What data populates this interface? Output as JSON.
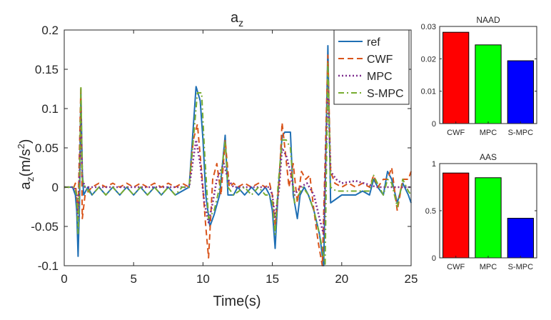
{
  "chart_data": [
    {
      "type": "line",
      "title_main": "a",
      "title_sub": "z",
      "xlabel": "Time(s)",
      "ylabel_main": "a",
      "ylabel_sub": "z",
      "ylabel_unit": "(m/s",
      "ylabel_exp": "2",
      "ylabel_close": ")",
      "xlim": [
        0,
        25
      ],
      "ylim": [
        -0.1,
        0.2
      ],
      "xticks": [
        0,
        5,
        10,
        15,
        20,
        25
      ],
      "xtick_labels": [
        "0",
        "5",
        "10",
        "15",
        "20",
        "25"
      ],
      "yticks": [
        -0.1,
        -0.05,
        0,
        0.05,
        0.1,
        0.15,
        0.2
      ],
      "ytick_labels": [
        "-0.1",
        "-0.05",
        "0",
        "0.05",
        "0.1",
        "0.15",
        "0.2"
      ],
      "legend_position": "top-right",
      "series": [
        {
          "name": "ref",
          "color": "#1f6fb4",
          "dash": "solid",
          "points": [
            [
              0,
              0
            ],
            [
              0.6,
              0
            ],
            [
              0.8,
              -0.01
            ],
            [
              0.9,
              -0.03
            ],
            [
              1.0,
              -0.088
            ],
            [
              1.1,
              -0.02
            ],
            [
              1.2,
              0.125
            ],
            [
              1.3,
              0.02
            ],
            [
              1.4,
              -0.01
            ],
            [
              1.7,
              0
            ],
            [
              2.0,
              -0.01
            ],
            [
              2.5,
              0
            ],
            [
              3.0,
              -0.01
            ],
            [
              3.5,
              0
            ],
            [
              4.0,
              -0.01
            ],
            [
              4.5,
              0
            ],
            [
              5.0,
              -0.01
            ],
            [
              5.5,
              0
            ],
            [
              6.0,
              -0.01
            ],
            [
              6.5,
              0
            ],
            [
              7.0,
              -0.01
            ],
            [
              7.5,
              0
            ],
            [
              8.0,
              -0.01
            ],
            [
              8.5,
              -0.005
            ],
            [
              9.0,
              0
            ],
            [
              9.5,
              0.128
            ],
            [
              9.8,
              0.11
            ],
            [
              10.0,
              0.06
            ],
            [
              10.2,
              -0.01
            ],
            [
              10.5,
              -0.05
            ],
            [
              10.8,
              -0.035
            ],
            [
              11.2,
              -0.01
            ],
            [
              11.6,
              0.066
            ],
            [
              11.8,
              -0.01
            ],
            [
              12.2,
              -0.01
            ],
            [
              12.5,
              0
            ],
            [
              13.0,
              -0.01
            ],
            [
              13.5,
              0
            ],
            [
              14.0,
              -0.01
            ],
            [
              14.5,
              0
            ],
            [
              14.8,
              -0.01
            ],
            [
              15.0,
              -0.03
            ],
            [
              15.2,
              -0.078
            ],
            [
              15.4,
              -0.01
            ],
            [
              15.7,
              0.065
            ],
            [
              15.9,
              0.07
            ],
            [
              16.3,
              0.07
            ],
            [
              16.5,
              -0.01
            ],
            [
              16.8,
              -0.04
            ],
            [
              17.0,
              -0.01
            ],
            [
              17.3,
              0
            ],
            [
              17.6,
              -0.01
            ],
            [
              18.0,
              -0.03
            ],
            [
              18.4,
              -0.06
            ],
            [
              18.7,
              -0.1
            ],
            [
              19.0,
              0.18
            ],
            [
              19.2,
              -0.02
            ],
            [
              19.6,
              -0.015
            ],
            [
              20.0,
              -0.01
            ],
            [
              20.5,
              -0.01
            ],
            [
              21.0,
              -0.01
            ],
            [
              21.5,
              -0.005
            ],
            [
              22.0,
              -0.01
            ],
            [
              22.3,
              0.01
            ],
            [
              22.6,
              0
            ],
            [
              23.0,
              -0.01
            ],
            [
              23.3,
              0.02
            ],
            [
              23.6,
              0.01
            ],
            [
              24.0,
              -0.02
            ],
            [
              24.4,
              0.005
            ],
            [
              24.8,
              -0.01
            ],
            [
              25.0,
              -0.02
            ]
          ]
        },
        {
          "name": "CWF",
          "color": "#d9541a",
          "dash": "dashed",
          "points": [
            [
              0,
              0
            ],
            [
              0.7,
              0
            ],
            [
              0.8,
              0.005
            ],
            [
              1.0,
              -0.03
            ],
            [
              1.1,
              0.05
            ],
            [
              1.2,
              0.128
            ],
            [
              1.3,
              -0.04
            ],
            [
              1.5,
              -0.01
            ],
            [
              2.0,
              0
            ],
            [
              2.5,
              0.005
            ],
            [
              3.0,
              0
            ],
            [
              3.5,
              0.005
            ],
            [
              4.0,
              0
            ],
            [
              4.5,
              0.005
            ],
            [
              5.0,
              0
            ],
            [
              5.5,
              0.005
            ],
            [
              6.0,
              0
            ],
            [
              6.5,
              0.005
            ],
            [
              7.0,
              0
            ],
            [
              7.5,
              0.005
            ],
            [
              8.0,
              0
            ],
            [
              8.5,
              0.005
            ],
            [
              9.0,
              0
            ],
            [
              9.3,
              0.06
            ],
            [
              9.6,
              0.08
            ],
            [
              9.9,
              0.02
            ],
            [
              10.2,
              -0.05
            ],
            [
              10.4,
              -0.09
            ],
            [
              10.7,
              0.01
            ],
            [
              11.0,
              0.03
            ],
            [
              11.3,
              -0.01
            ],
            [
              11.6,
              0.06
            ],
            [
              11.9,
              0
            ],
            [
              12.2,
              0.005
            ],
            [
              12.5,
              0
            ],
            [
              13.0,
              0.005
            ],
            [
              13.5,
              0
            ],
            [
              14.0,
              0.005
            ],
            [
              14.5,
              0
            ],
            [
              14.8,
              0.005
            ],
            [
              15.0,
              -0.01
            ],
            [
              15.2,
              -0.05
            ],
            [
              15.5,
              0.01
            ],
            [
              15.7,
              0.082
            ],
            [
              15.9,
              0.05
            ],
            [
              16.2,
              0
            ],
            [
              16.5,
              0.03
            ],
            [
              16.8,
              -0.02
            ],
            [
              17.1,
              0.02
            ],
            [
              17.4,
              0.01
            ],
            [
              17.7,
              0.015
            ],
            [
              18.0,
              -0.03
            ],
            [
              18.3,
              -0.07
            ],
            [
              18.6,
              -0.1
            ],
            [
              19.0,
              0.168
            ],
            [
              19.2,
              0.02
            ],
            [
              19.5,
              0.005
            ],
            [
              20.0,
              0
            ],
            [
              20.5,
              0.005
            ],
            [
              21.0,
              0
            ],
            [
              21.5,
              0.005
            ],
            [
              22.0,
              0
            ],
            [
              22.3,
              0.015
            ],
            [
              22.6,
              0
            ],
            [
              23.0,
              0.01
            ],
            [
              23.3,
              0.01
            ],
            [
              23.6,
              0.025
            ],
            [
              24.0,
              -0.03
            ],
            [
              24.4,
              0.01
            ],
            [
              24.8,
              0.01
            ],
            [
              25.0,
              0.02
            ]
          ]
        },
        {
          "name": "MPC",
          "color": "#7e2f8e",
          "dash": "dotted",
          "points": [
            [
              0,
              0
            ],
            [
              0.7,
              0
            ],
            [
              0.9,
              -0.01
            ],
            [
              1.0,
              -0.04
            ],
            [
              1.1,
              0.02
            ],
            [
              1.2,
              0.09
            ],
            [
              1.3,
              0.01
            ],
            [
              1.5,
              0
            ],
            [
              3.0,
              0
            ],
            [
              5.0,
              0
            ],
            [
              7.0,
              0
            ],
            [
              8.5,
              0
            ],
            [
              9.0,
              0
            ],
            [
              9.5,
              0.06
            ],
            [
              9.8,
              0.03
            ],
            [
              10.1,
              -0.02
            ],
            [
              10.4,
              -0.045
            ],
            [
              10.7,
              -0.02
            ],
            [
              11.0,
              0.01
            ],
            [
              11.5,
              0.03
            ],
            [
              11.8,
              0.01
            ],
            [
              12.2,
              0
            ],
            [
              13.0,
              0
            ],
            [
              14.0,
              0
            ],
            [
              14.8,
              0
            ],
            [
              15.0,
              -0.01
            ],
            [
              15.2,
              -0.04
            ],
            [
              15.5,
              0
            ],
            [
              15.7,
              0.05
            ],
            [
              16.0,
              0.04
            ],
            [
              16.3,
              0.02
            ],
            [
              16.6,
              -0.01
            ],
            [
              17.0,
              0
            ],
            [
              17.5,
              0.005
            ],
            [
              18.0,
              -0.01
            ],
            [
              18.4,
              -0.04
            ],
            [
              18.7,
              -0.06
            ],
            [
              19.0,
              0.13
            ],
            [
              19.2,
              0.02
            ],
            [
              19.6,
              0.01
            ],
            [
              20.0,
              0.005
            ],
            [
              21.0,
              0.008
            ],
            [
              22.0,
              0.003
            ],
            [
              22.5,
              0
            ],
            [
              23.0,
              0
            ],
            [
              24.0,
              0
            ],
            [
              25.0,
              0
            ]
          ]
        },
        {
          "name": "S-MPC",
          "color": "#77ac30",
          "dash": "dashdot",
          "points": [
            [
              0,
              0
            ],
            [
              0.7,
              0
            ],
            [
              0.9,
              -0.01
            ],
            [
              1.0,
              -0.06
            ],
            [
              1.1,
              0
            ],
            [
              1.2,
              0.128
            ],
            [
              1.3,
              0.01
            ],
            [
              1.5,
              0
            ],
            [
              2.0,
              -0.01
            ],
            [
              2.5,
              0
            ],
            [
              3.0,
              -0.01
            ],
            [
              3.5,
              0
            ],
            [
              4.0,
              -0.01
            ],
            [
              4.5,
              0
            ],
            [
              5.0,
              -0.01
            ],
            [
              5.5,
              0
            ],
            [
              6.0,
              -0.01
            ],
            [
              6.5,
              0
            ],
            [
              7.0,
              -0.01
            ],
            [
              7.5,
              0
            ],
            [
              8.0,
              -0.01
            ],
            [
              8.5,
              0
            ],
            [
              9.0,
              0
            ],
            [
              9.6,
              0.12
            ],
            [
              9.9,
              0.12
            ],
            [
              10.1,
              0.05
            ],
            [
              10.4,
              -0.04
            ],
            [
              10.8,
              -0.03
            ],
            [
              11.2,
              0
            ],
            [
              11.6,
              0.058
            ],
            [
              11.8,
              0
            ],
            [
              12.2,
              -0.01
            ],
            [
              13.0,
              0
            ],
            [
              13.5,
              -0.01
            ],
            [
              14.0,
              0
            ],
            [
              14.5,
              -0.01
            ],
            [
              14.8,
              -0.01
            ],
            [
              15.0,
              -0.02
            ],
            [
              15.2,
              -0.06
            ],
            [
              15.4,
              0
            ],
            [
              15.7,
              0.06
            ],
            [
              16.0,
              0.06
            ],
            [
              16.3,
              0.05
            ],
            [
              16.6,
              -0.02
            ],
            [
              16.9,
              -0.01
            ],
            [
              17.2,
              0
            ],
            [
              17.6,
              -0.01
            ],
            [
              18.0,
              -0.03
            ],
            [
              18.4,
              -0.06
            ],
            [
              18.8,
              -0.098
            ],
            [
              19.0,
              0.158
            ],
            [
              19.2,
              0
            ],
            [
              19.6,
              -0.005
            ],
            [
              20.0,
              -0.005
            ],
            [
              21.0,
              -0.005
            ],
            [
              22.0,
              -0.005
            ],
            [
              22.3,
              0.015
            ],
            [
              22.7,
              0
            ],
            [
              23.0,
              -0.01
            ],
            [
              23.3,
              0.01
            ],
            [
              23.6,
              0.005
            ],
            [
              24.0,
              -0.025
            ],
            [
              24.4,
              0.01
            ],
            [
              24.8,
              -0.005
            ],
            [
              25.0,
              -0.01
            ]
          ]
        }
      ]
    },
    {
      "type": "bar",
      "title": "NAAD",
      "categories": [
        "CWF",
        "MPC",
        "S-MPC"
      ],
      "values": [
        0.0282,
        0.0243,
        0.0194
      ],
      "colors": [
        "#ff0000",
        "#00ff00",
        "#0000ff"
      ],
      "ylim": [
        0,
        0.03
      ],
      "yticks": [
        0,
        0.01,
        0.02,
        0.03
      ],
      "ytick_labels": [
        "0",
        "0.01",
        "0.02",
        "0.03"
      ]
    },
    {
      "type": "bar",
      "title": "AAS",
      "categories": [
        "CWF",
        "MPC",
        "S-MPC"
      ],
      "values": [
        0.9,
        0.85,
        0.42
      ],
      "colors": [
        "#ff0000",
        "#00ff00",
        "#0000ff"
      ],
      "ylim": [
        0,
        1
      ],
      "yticks": [
        0,
        0.5,
        1
      ],
      "ytick_labels": [
        "0",
        "0.5",
        "1"
      ]
    }
  ]
}
